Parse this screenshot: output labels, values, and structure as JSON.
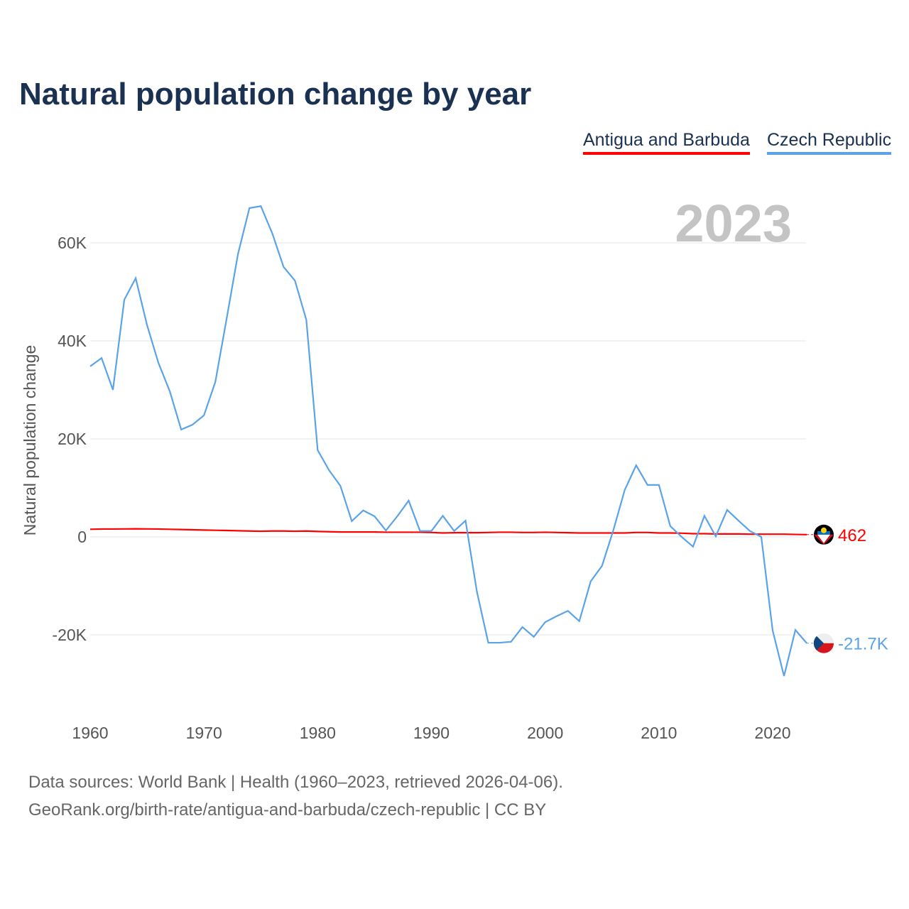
{
  "title": "Natural population change by year",
  "legend": [
    {
      "label": "Antigua and Barbuda",
      "color": "#ff0000"
    },
    {
      "label": "Czech Republic",
      "color": "#5ba3e8"
    }
  ],
  "chart_data": {
    "type": "line",
    "title": "Natural population change by year",
    "xlabel": "",
    "ylabel": "Natural population change",
    "year_label": "2023",
    "xlim": [
      1960,
      2023
    ],
    "ylim": [
      -35000,
      70000
    ],
    "x_ticks": [
      1960,
      1970,
      1980,
      1990,
      2000,
      2010,
      2020
    ],
    "y_ticks": [
      {
        "v": -20000,
        "label": "-20K"
      },
      {
        "v": 0,
        "label": "0"
      },
      {
        "v": 20000,
        "label": "20K"
      },
      {
        "v": 40000,
        "label": "40K"
      },
      {
        "v": 60000,
        "label": "60K"
      }
    ],
    "grid": true,
    "x": [
      1960,
      1961,
      1962,
      1963,
      1964,
      1965,
      1966,
      1967,
      1968,
      1969,
      1970,
      1971,
      1972,
      1973,
      1974,
      1975,
      1976,
      1977,
      1978,
      1979,
      1980,
      1981,
      1982,
      1983,
      1984,
      1985,
      1986,
      1987,
      1988,
      1989,
      1990,
      1991,
      1992,
      1993,
      1994,
      1995,
      1996,
      1997,
      1998,
      1999,
      2000,
      2001,
      2002,
      2003,
      2004,
      2005,
      2006,
      2007,
      2008,
      2009,
      2010,
      2011,
      2012,
      2013,
      2014,
      2015,
      2016,
      2017,
      2018,
      2019,
      2020,
      2021,
      2022,
      2023
    ],
    "series": [
      {
        "name": "Antigua and Barbuda",
        "color": "#ff0000",
        "end_label": "462",
        "values": [
          1550,
          1600,
          1600,
          1620,
          1650,
          1620,
          1600,
          1550,
          1500,
          1450,
          1400,
          1350,
          1300,
          1250,
          1200,
          1150,
          1200,
          1200,
          1150,
          1200,
          1100,
          1050,
          1000,
          1000,
          1000,
          1000,
          950,
          950,
          950,
          950,
          900,
          800,
          850,
          850,
          850,
          900,
          950,
          950,
          900,
          900,
          950,
          900,
          850,
          800,
          800,
          800,
          800,
          800,
          900,
          900,
          800,
          800,
          750,
          650,
          650,
          600,
          600,
          600,
          550,
          550,
          550,
          550,
          500,
          462
        ]
      },
      {
        "name": "Czech Republic",
        "color": "#5ba3e8",
        "end_label": "-21.7K",
        "values": [
          34800,
          36500,
          30000,
          48400,
          52800,
          43200,
          35500,
          29700,
          21900,
          22900,
          24800,
          31600,
          44600,
          57800,
          67100,
          67500,
          62000,
          55100,
          52300,
          44300,
          17700,
          13600,
          10400,
          3200,
          5400,
          4200,
          1300,
          4200,
          7400,
          1200,
          1200,
          4300,
          1200,
          3300,
          -11200,
          -21600,
          -21600,
          -21400,
          -18400,
          -20400,
          -17400,
          -16200,
          -15100,
          -17200,
          -9100,
          -5900,
          1400,
          9600,
          14600,
          10600,
          10600,
          2200,
          0,
          -2000,
          4300,
          100,
          5500,
          3300,
          1200,
          0,
          -19100,
          -28400,
          -19000,
          -21700
        ]
      }
    ]
  },
  "footer": {
    "line1": "Data sources: World Bank | Health (1960–2023, retrieved 2026-04-06).",
    "line2": "GeoRank.org/birth-rate/antigua-and-barbuda/czech-republic | CC BY"
  }
}
